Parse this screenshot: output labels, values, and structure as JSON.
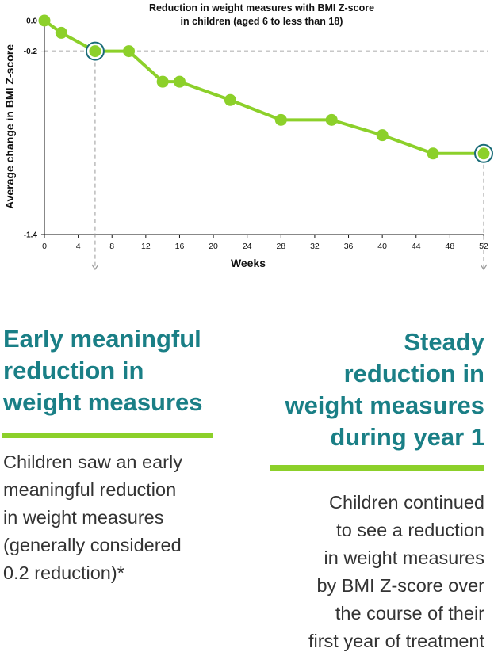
{
  "chart_data": {
    "type": "line",
    "title_lines": [
      "Reduction in weight measures with BMI Z-score",
      "in children (aged 6 to less than 18)"
    ],
    "xlabel": "Weeks",
    "ylabel": "Average change in BMI Z-score",
    "xticks": [
      0,
      4,
      8,
      12,
      16,
      20,
      24,
      28,
      32,
      36,
      40,
      44,
      48,
      52
    ],
    "xlim": [
      0,
      52
    ],
    "ylim": [
      -1.4,
      0.0
    ],
    "yticks": [
      {
        "value": 0.0,
        "label": "0.0"
      },
      {
        "value": -0.2,
        "label": "-0.2"
      },
      {
        "value": -1.4,
        "label": "-1.4"
      }
    ],
    "reference_line": {
      "value": -0.2,
      "style": "dashed"
    },
    "series": [
      {
        "color": "#8cd02a",
        "x": [
          0,
          2,
          6,
          10,
          14,
          16,
          22,
          28,
          34,
          40,
          46,
          52
        ],
        "y": [
          0.0,
          -0.08,
          -0.2,
          -0.2,
          -0.4,
          -0.4,
          -0.52,
          -0.65,
          -0.65,
          -0.75,
          -0.87,
          -0.87
        ]
      }
    ],
    "highlighted_points": [
      {
        "x": 6,
        "y": -0.2
      },
      {
        "x": 52,
        "y": -0.87
      }
    ],
    "highlight_ring_color": "#1a6c78",
    "grid": false
  },
  "left_panel": {
    "heading_lines": [
      "Early meaningful",
      "reduction in",
      "weight measures"
    ],
    "body_lines": [
      "Children saw an early",
      "meaningful reduction",
      "in weight measures",
      "(generally considered",
      "0.2 reduction)*"
    ]
  },
  "right_panel": {
    "heading_lines": [
      "Steady",
      "reduction in",
      "weight measures",
      "during year 1"
    ],
    "body_lines": [
      "Children continued",
      "to see a reduction",
      "in weight measures",
      "by BMI Z-score over",
      "the course of their",
      "first year of treatment"
    ]
  },
  "colors": {
    "accent_green": "#8cd02a",
    "heading_teal": "#1a7f86",
    "ring_navy": "#1a6c78"
  }
}
